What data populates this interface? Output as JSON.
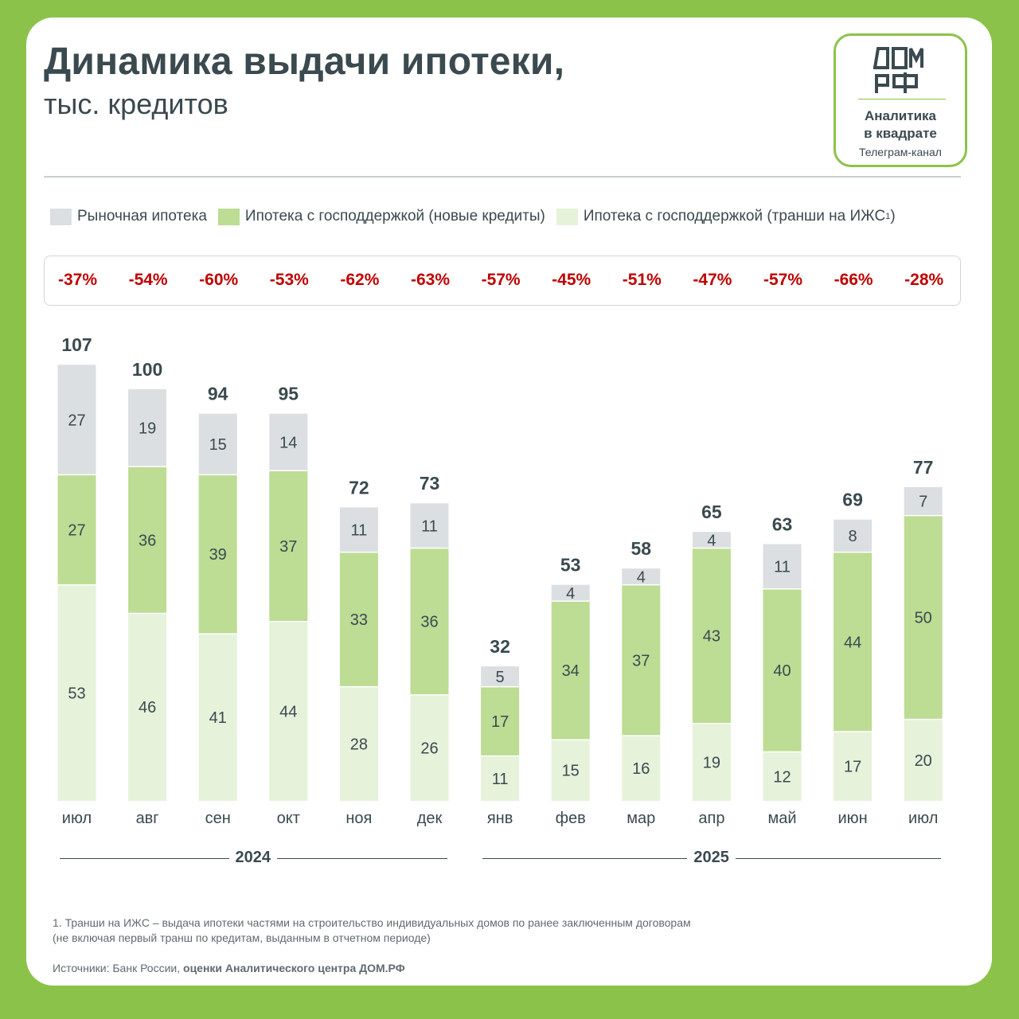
{
  "header": {
    "title": "Динамика выдачи ипотеки,",
    "subtitle": "тыс. кредитов"
  },
  "badge": {
    "logo_text": "ДОМ РФ",
    "title": "Аналитика\nв квадрате",
    "subtitle": "Телеграм-канал",
    "accent_color": "#8bc34a"
  },
  "legend": [
    {
      "label": "Рыночная ипотека",
      "color": "#dcdfe1"
    },
    {
      "label": "Ипотека  с господдержкой  (новые кредиты)",
      "color": "#bddc94"
    },
    {
      "label": "Ипотека  с господдержкой  (транши  на ИЖС",
      "sup": "1",
      "tail": ")",
      "color": "#e6f2da"
    }
  ],
  "changes": [
    "-37%",
    "-54%",
    "-60%",
    "-53%",
    "-62%",
    "-63%",
    "-57%",
    "-45%",
    "-51%",
    "-47%",
    "-57%",
    "-66%",
    "-28%"
  ],
  "chart_data": {
    "type": "bar",
    "stacked": true,
    "categories": [
      "июл",
      "авг",
      "сен",
      "окт",
      "ноя",
      "дек",
      "янв",
      "фев",
      "мар",
      "апр",
      "май",
      "июн",
      "июл"
    ],
    "series": [
      {
        "name": "Ипотека с господдержкой (транши на ИЖС)",
        "color": "#e6f2da",
        "values": [
          53,
          46,
          41,
          44,
          28,
          26,
          11,
          15,
          16,
          19,
          12,
          17,
          20
        ]
      },
      {
        "name": "Ипотека с господдержкой (новые кредиты)",
        "color": "#bddc94",
        "values": [
          27,
          36,
          39,
          37,
          33,
          36,
          17,
          34,
          37,
          43,
          40,
          44,
          50
        ]
      },
      {
        "name": "Рыночная ипотека",
        "color": "#dcdfe1",
        "values": [
          27,
          19,
          15,
          14,
          11,
          11,
          5,
          4,
          4,
          4,
          11,
          8,
          7
        ]
      }
    ],
    "totals": [
      107,
      100,
      94,
      95,
      72,
      73,
      32,
      53,
      58,
      65,
      63,
      69,
      77
    ],
    "groups": [
      {
        "label": "2024",
        "categories": 6
      },
      {
        "label": "2025",
        "categories": 7
      }
    ],
    "legend_position": "top",
    "grid": false
  },
  "footnote": [
    "1. Транши на ИЖС – выдача ипотеки частями на строительство индивидуальных домов по ранее заключенным договорам",
    "(не включая первый транш по кредитам, выданным в отчетном периоде)"
  ],
  "source": {
    "prefix": "Источники: Банк России, ",
    "bold": "оценки Аналитического центра ДОМ.РФ"
  }
}
